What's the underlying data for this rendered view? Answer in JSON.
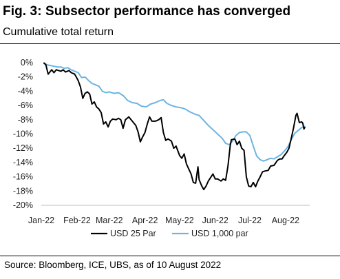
{
  "header": {
    "title": "Fig. 3: Subsector performance has converged",
    "subtitle": "Cumulative total return"
  },
  "footer": {
    "source": "Source: Bloomberg, ICE, UBS, as of 10 August 2022"
  },
  "colors": {
    "usd25": "#000000",
    "usd1000": "#6ab4e2",
    "axis": "#bfbfbf"
  },
  "chart_data": {
    "type": "line",
    "title": "Fig. 3: Subsector performance has converged",
    "subtitle": "Cumulative total return",
    "x_tick_labels": [
      "Jan-22",
      "Feb-22",
      "Mar-22",
      "Apr-22",
      "May-22",
      "Jun-22",
      "Jul-22",
      "Aug-22"
    ],
    "y_tick_labels": [
      "0%",
      "-2%",
      "-4%",
      "-6%",
      "-8%",
      "-10%",
      "-12%",
      "-14%",
      "-16%",
      "-18%",
      "-20%"
    ],
    "ylim": [
      -20,
      0
    ],
    "xlim": [
      "2022-01-01",
      "2022-08-22"
    ],
    "grid": false,
    "legend_position": "bottom",
    "series": [
      {
        "name": "USD 25 Par",
        "color": "#000000",
        "points": [
          [
            "2022-01-03",
            0.0
          ],
          [
            "2022-01-05",
            -0.3
          ],
          [
            "2022-01-06",
            -1.0
          ],
          [
            "2022-01-07",
            -1.6
          ],
          [
            "2022-01-10",
            -1.0
          ],
          [
            "2022-01-12",
            -1.4
          ],
          [
            "2022-01-14",
            -1.0
          ],
          [
            "2022-01-18",
            -1.2
          ],
          [
            "2022-01-20",
            -1.0
          ],
          [
            "2022-01-22",
            -1.3
          ],
          [
            "2022-01-25",
            -1.1
          ],
          [
            "2022-01-27",
            -1.4
          ],
          [
            "2022-01-30",
            -1.6
          ],
          [
            "2022-02-02",
            -2.5
          ],
          [
            "2022-02-04",
            -3.4
          ],
          [
            "2022-02-06",
            -5.0
          ],
          [
            "2022-02-08",
            -4.3
          ],
          [
            "2022-02-10",
            -4.1
          ],
          [
            "2022-02-12",
            -4.4
          ],
          [
            "2022-02-14",
            -5.8
          ],
          [
            "2022-02-16",
            -5.5
          ],
          [
            "2022-02-18",
            -6.2
          ],
          [
            "2022-02-20",
            -6.5
          ],
          [
            "2022-02-22",
            -7.0
          ],
          [
            "2022-02-24",
            -8.6
          ],
          [
            "2022-02-26",
            -8.3
          ],
          [
            "2022-02-28",
            -9.0
          ],
          [
            "2022-03-02",
            -8.2
          ],
          [
            "2022-03-04",
            -7.9
          ],
          [
            "2022-03-07",
            -8.0
          ],
          [
            "2022-03-09",
            -7.8
          ],
          [
            "2022-03-11",
            -8.0
          ],
          [
            "2022-03-13",
            -9.2
          ],
          [
            "2022-03-15",
            -8.0
          ],
          [
            "2022-03-18",
            -7.6
          ],
          [
            "2022-03-21",
            -8.2
          ],
          [
            "2022-03-24",
            -8.8
          ],
          [
            "2022-03-26",
            -9.7
          ],
          [
            "2022-03-28",
            -11.1
          ],
          [
            "2022-03-30",
            -10.4
          ],
          [
            "2022-04-01",
            -9.8
          ],
          [
            "2022-04-03",
            -8.6
          ],
          [
            "2022-04-05",
            -7.6
          ],
          [
            "2022-04-07",
            -8.2
          ],
          [
            "2022-04-10",
            -8.2
          ],
          [
            "2022-04-13",
            -8.0
          ],
          [
            "2022-04-15",
            -7.7
          ],
          [
            "2022-04-17",
            -9.8
          ],
          [
            "2022-04-19",
            -10.9
          ],
          [
            "2022-04-21",
            -10.7
          ],
          [
            "2022-04-24",
            -11.0
          ],
          [
            "2022-04-26",
            -12.0
          ],
          [
            "2022-04-28",
            -11.7
          ],
          [
            "2022-05-01",
            -13.0
          ],
          [
            "2022-05-03",
            -13.4
          ],
          [
            "2022-05-05",
            -12.8
          ],
          [
            "2022-05-07",
            -14.2
          ],
          [
            "2022-05-09",
            -14.9
          ],
          [
            "2022-05-11",
            -15.6
          ],
          [
            "2022-05-13",
            -16.8
          ],
          [
            "2022-05-15",
            -16.9
          ],
          [
            "2022-05-17",
            -14.6
          ],
          [
            "2022-05-18",
            -16.4
          ],
          [
            "2022-05-20",
            -17.2
          ],
          [
            "2022-05-22",
            -17.8
          ],
          [
            "2022-05-24",
            -17.3
          ],
          [
            "2022-05-26",
            -16.6
          ],
          [
            "2022-05-28",
            -16.1
          ],
          [
            "2022-05-30",
            -15.6
          ],
          [
            "2022-06-01",
            -16.3
          ],
          [
            "2022-06-03",
            -16.3
          ],
          [
            "2022-06-06",
            -16.6
          ],
          [
            "2022-06-08",
            -16.3
          ],
          [
            "2022-06-10",
            -16.5
          ],
          [
            "2022-06-12",
            -14.5
          ],
          [
            "2022-06-14",
            -11.6
          ],
          [
            "2022-06-15",
            -10.8
          ],
          [
            "2022-06-18",
            -10.7
          ],
          [
            "2022-06-20",
            -11.5
          ],
          [
            "2022-06-22",
            -11.0
          ],
          [
            "2022-06-24",
            -12.0
          ],
          [
            "2022-06-26",
            -12.3
          ],
          [
            "2022-06-28",
            -16.0
          ],
          [
            "2022-06-30",
            -17.3
          ],
          [
            "2022-07-02",
            -17.4
          ],
          [
            "2022-07-04",
            -16.8
          ],
          [
            "2022-07-06",
            -17.4
          ],
          [
            "2022-07-08",
            -16.6
          ],
          [
            "2022-07-10",
            -16.0
          ],
          [
            "2022-07-12",
            -15.3
          ],
          [
            "2022-07-14",
            -15.2
          ],
          [
            "2022-07-17",
            -15.1
          ],
          [
            "2022-07-19",
            -14.5
          ],
          [
            "2022-07-22",
            -14.4
          ],
          [
            "2022-07-25",
            -13.7
          ],
          [
            "2022-07-27",
            -13.5
          ],
          [
            "2022-07-29",
            -13.5
          ],
          [
            "2022-07-31",
            -13.0
          ],
          [
            "2022-08-02",
            -12.6
          ],
          [
            "2022-08-04",
            -12.0
          ],
          [
            "2022-08-06",
            -10.6
          ],
          [
            "2022-08-08",
            -9.1
          ],
          [
            "2022-08-10",
            -7.4
          ],
          [
            "2022-08-11",
            -7.1
          ],
          [
            "2022-08-13",
            -8.4
          ],
          [
            "2022-08-15",
            -8.3
          ],
          [
            "2022-08-16",
            -8.5
          ],
          [
            "2022-08-17",
            -9.3
          ],
          [
            "2022-08-18",
            -9.0
          ]
        ]
      },
      {
        "name": "USD 1,000 par",
        "color": "#6ab4e2",
        "points": [
          [
            "2022-01-03",
            0.0
          ],
          [
            "2022-01-06",
            -0.3
          ],
          [
            "2022-01-09",
            -0.4
          ],
          [
            "2022-01-12",
            -0.5
          ],
          [
            "2022-01-15",
            -0.6
          ],
          [
            "2022-01-18",
            -0.6
          ],
          [
            "2022-01-21",
            -0.8
          ],
          [
            "2022-01-24",
            -0.7
          ],
          [
            "2022-01-27",
            -1.0
          ],
          [
            "2022-01-30",
            -1.2
          ],
          [
            "2022-02-02",
            -1.4
          ],
          [
            "2022-02-05",
            -2.1
          ],
          [
            "2022-02-08",
            -2.0
          ],
          [
            "2022-02-11",
            -2.5
          ],
          [
            "2022-02-14",
            -2.9
          ],
          [
            "2022-02-17",
            -3.1
          ],
          [
            "2022-02-20",
            -3.3
          ],
          [
            "2022-02-23",
            -4.0
          ],
          [
            "2022-02-26",
            -4.2
          ],
          [
            "2022-03-01",
            -4.1
          ],
          [
            "2022-03-05",
            -4.3
          ],
          [
            "2022-03-09",
            -4.2
          ],
          [
            "2022-03-13",
            -4.6
          ],
          [
            "2022-03-17",
            -5.3
          ],
          [
            "2022-03-21",
            -5.6
          ],
          [
            "2022-03-25",
            -5.7
          ],
          [
            "2022-03-29",
            -6.1
          ],
          [
            "2022-04-02",
            -6.2
          ],
          [
            "2022-04-06",
            -5.8
          ],
          [
            "2022-04-10",
            -5.6
          ],
          [
            "2022-04-14",
            -5.3
          ],
          [
            "2022-04-17",
            -5.2
          ],
          [
            "2022-04-20",
            -5.7
          ],
          [
            "2022-04-24",
            -6.0
          ],
          [
            "2022-04-28",
            -6.2
          ],
          [
            "2022-05-02",
            -6.3
          ],
          [
            "2022-05-06",
            -6.5
          ],
          [
            "2022-05-10",
            -6.9
          ],
          [
            "2022-05-14",
            -7.2
          ],
          [
            "2022-05-18",
            -7.4
          ],
          [
            "2022-05-22",
            -8.1
          ],
          [
            "2022-05-26",
            -8.8
          ],
          [
            "2022-05-30",
            -9.4
          ],
          [
            "2022-06-03",
            -10.0
          ],
          [
            "2022-06-07",
            -10.6
          ],
          [
            "2022-06-10",
            -11.3
          ],
          [
            "2022-06-13",
            -11.5
          ],
          [
            "2022-06-16",
            -11.0
          ],
          [
            "2022-06-19",
            -10.2
          ],
          [
            "2022-06-22",
            -9.8
          ],
          [
            "2022-06-25",
            -9.7
          ],
          [
            "2022-06-28",
            -9.7
          ],
          [
            "2022-07-01",
            -10.2
          ],
          [
            "2022-07-04",
            -11.7
          ],
          [
            "2022-07-07",
            -13.1
          ],
          [
            "2022-07-10",
            -13.6
          ],
          [
            "2022-07-13",
            -13.8
          ],
          [
            "2022-07-16",
            -13.6
          ],
          [
            "2022-07-19",
            -13.4
          ],
          [
            "2022-07-22",
            -13.5
          ],
          [
            "2022-07-25",
            -13.2
          ],
          [
            "2022-07-28",
            -12.9
          ],
          [
            "2022-07-31",
            -12.4
          ],
          [
            "2022-08-03",
            -11.8
          ],
          [
            "2022-08-06",
            -10.8
          ],
          [
            "2022-08-09",
            -9.9
          ],
          [
            "2022-08-12",
            -9.5
          ],
          [
            "2022-08-15",
            -9.1
          ],
          [
            "2022-08-18",
            -8.9
          ]
        ]
      }
    ]
  }
}
